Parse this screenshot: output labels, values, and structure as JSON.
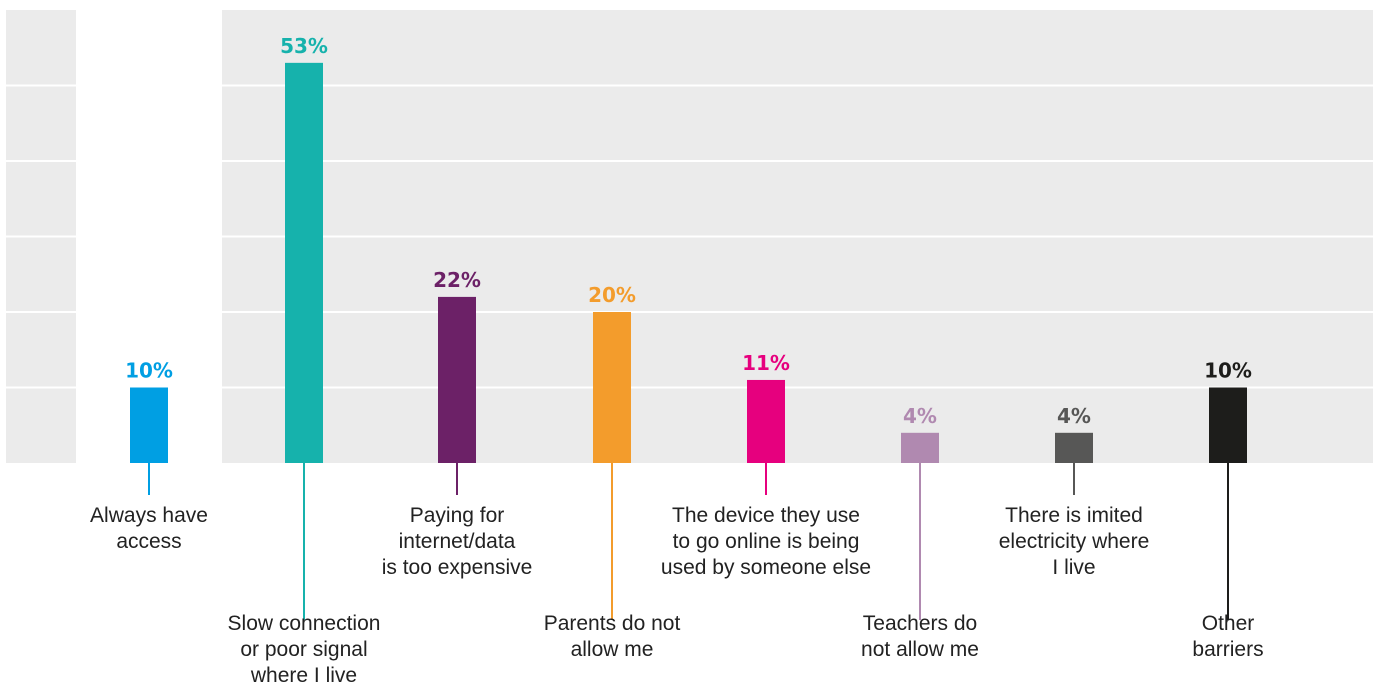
{
  "chart_data": {
    "type": "bar",
    "categories": [
      [
        "Always have",
        "access"
      ],
      [
        "Slow connection",
        "or poor signal",
        "where I live"
      ],
      [
        "Paying for",
        "internet/data",
        "is too expensive"
      ],
      [
        "Parents do not",
        "allow me"
      ],
      [
        "The device they use",
        "to go online is being",
        "used by someone else"
      ],
      [
        "Teachers do",
        "not allow me"
      ],
      [
        "There is imited",
        "electricity where",
        "I live"
      ],
      [
        "Other",
        "barriers"
      ]
    ],
    "values": [
      10,
      53,
      22,
      20,
      11,
      4,
      4,
      10
    ],
    "value_labels": [
      "10%",
      "53%",
      "22%",
      "20%",
      "11%",
      "4%",
      "4%",
      "10%"
    ],
    "colors": [
      "#009fe3",
      "#16b2ac",
      "#6c2167",
      "#f39c2c",
      "#e6007e",
      "#b089b0",
      "#575756",
      "#1d1d1b"
    ],
    "ylim": [
      0,
      60
    ],
    "grid": true,
    "background_color": "#ebebeb",
    "title": "",
    "xlabel": "",
    "ylabel": ""
  }
}
